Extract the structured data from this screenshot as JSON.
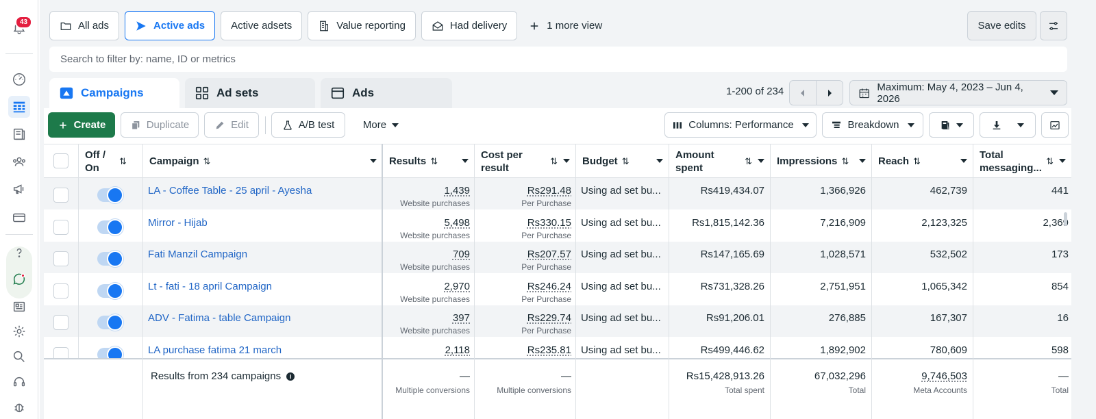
{
  "notifications": {
    "count": "43"
  },
  "views": {
    "items": [
      "All ads",
      "Active ads",
      "Active adsets",
      "Value reporting",
      "Had delivery"
    ],
    "more": "1 more view",
    "save_label": "Save edits"
  },
  "search": {
    "placeholder": "Search to filter by: name, ID or metrics"
  },
  "level_tabs": [
    "Campaigns",
    "Ad sets",
    "Ads"
  ],
  "pagination": {
    "range": "1-200 of 234"
  },
  "date_range": "Maximum: May 4, 2023 – Jun 4, 2026",
  "toolbar": {
    "create": "Create",
    "duplicate": "Duplicate",
    "edit": "Edit",
    "ab_test": "A/B test",
    "more": "More",
    "columns": "Columns: Performance",
    "breakdown": "Breakdown"
  },
  "columns": {
    "off_on": "Off / On",
    "campaign": "Campaign",
    "results": "Results",
    "cost_per_result": "Cost per result",
    "budget": "Budget",
    "amount_spent": "Amount spent",
    "impressions": "Impressions",
    "reach": "Reach",
    "total_messaging": "Total messaging..."
  },
  "rows": [
    {
      "name": "LA - Coffee Table - 25 april - Ayesha",
      "results": "1,439",
      "results_sub": "Website purchases",
      "cpr": "Rs291.48",
      "cpr_sub": "Per Purchase",
      "budget": "Using ad set bu...",
      "spent": "Rs419,434.07",
      "impressions": "1,366,926",
      "reach": "462,739",
      "messaging": "441"
    },
    {
      "name": "Mirror - Hijab",
      "results": "5,498",
      "results_sub": "Website purchases",
      "cpr": "Rs330.15",
      "cpr_sub": "Per Purchase",
      "budget": "Using ad set bu...",
      "spent": "Rs1,815,142.36",
      "impressions": "7,216,909",
      "reach": "2,123,325",
      "messaging": "2,369"
    },
    {
      "name": "Fati Manzil Campaign",
      "results": "709",
      "results_sub": "Website purchases",
      "cpr": "Rs207.57",
      "cpr_sub": "Per Purchase",
      "budget": "Using ad set bu...",
      "spent": "Rs147,165.69",
      "impressions": "1,028,571",
      "reach": "532,502",
      "messaging": "173"
    },
    {
      "name": "Lt - fati - 18 april Campaign",
      "results": "2,970",
      "results_sub": "Website purchases",
      "cpr": "Rs246.24",
      "cpr_sub": "Per Purchase",
      "budget": "Using ad set bu...",
      "spent": "Rs731,328.26",
      "impressions": "2,751,951",
      "reach": "1,065,342",
      "messaging": "854"
    },
    {
      "name": "ADV - Fatima - table Campaign",
      "results": "397",
      "results_sub": "Website purchases",
      "cpr": "Rs229.74",
      "cpr_sub": "Per Purchase",
      "budget": "Using ad set bu...",
      "spent": "Rs91,206.01",
      "impressions": "276,885",
      "reach": "167,307",
      "messaging": "16"
    },
    {
      "name": "LA purchase fatima 21 march",
      "results": "2,118",
      "results_sub": "",
      "cpr": "Rs235.81",
      "cpr_sub": "",
      "budget": "Using ad set bu...",
      "spent": "Rs499,446.62",
      "impressions": "1,892,902",
      "reach": "780,609",
      "messaging": "598"
    }
  ],
  "totals": {
    "label": "Results from 234 campaigns",
    "results": "—",
    "results_sub": "Multiple conversions",
    "cpr": "—",
    "cpr_sub": "Multiple conversions",
    "spent": "Rs15,428,913.26",
    "spent_sub": "Total spent",
    "impressions": "67,032,296",
    "impressions_sub": "Total",
    "reach": "9,746,503",
    "reach_sub": "Meta Accounts",
    "messaging": "—",
    "messaging_sub": "Total"
  },
  "colors": {
    "accent": "#1877f2",
    "create": "#1d7a4a",
    "link": "#2166c6",
    "badge": "#e41e3f"
  }
}
